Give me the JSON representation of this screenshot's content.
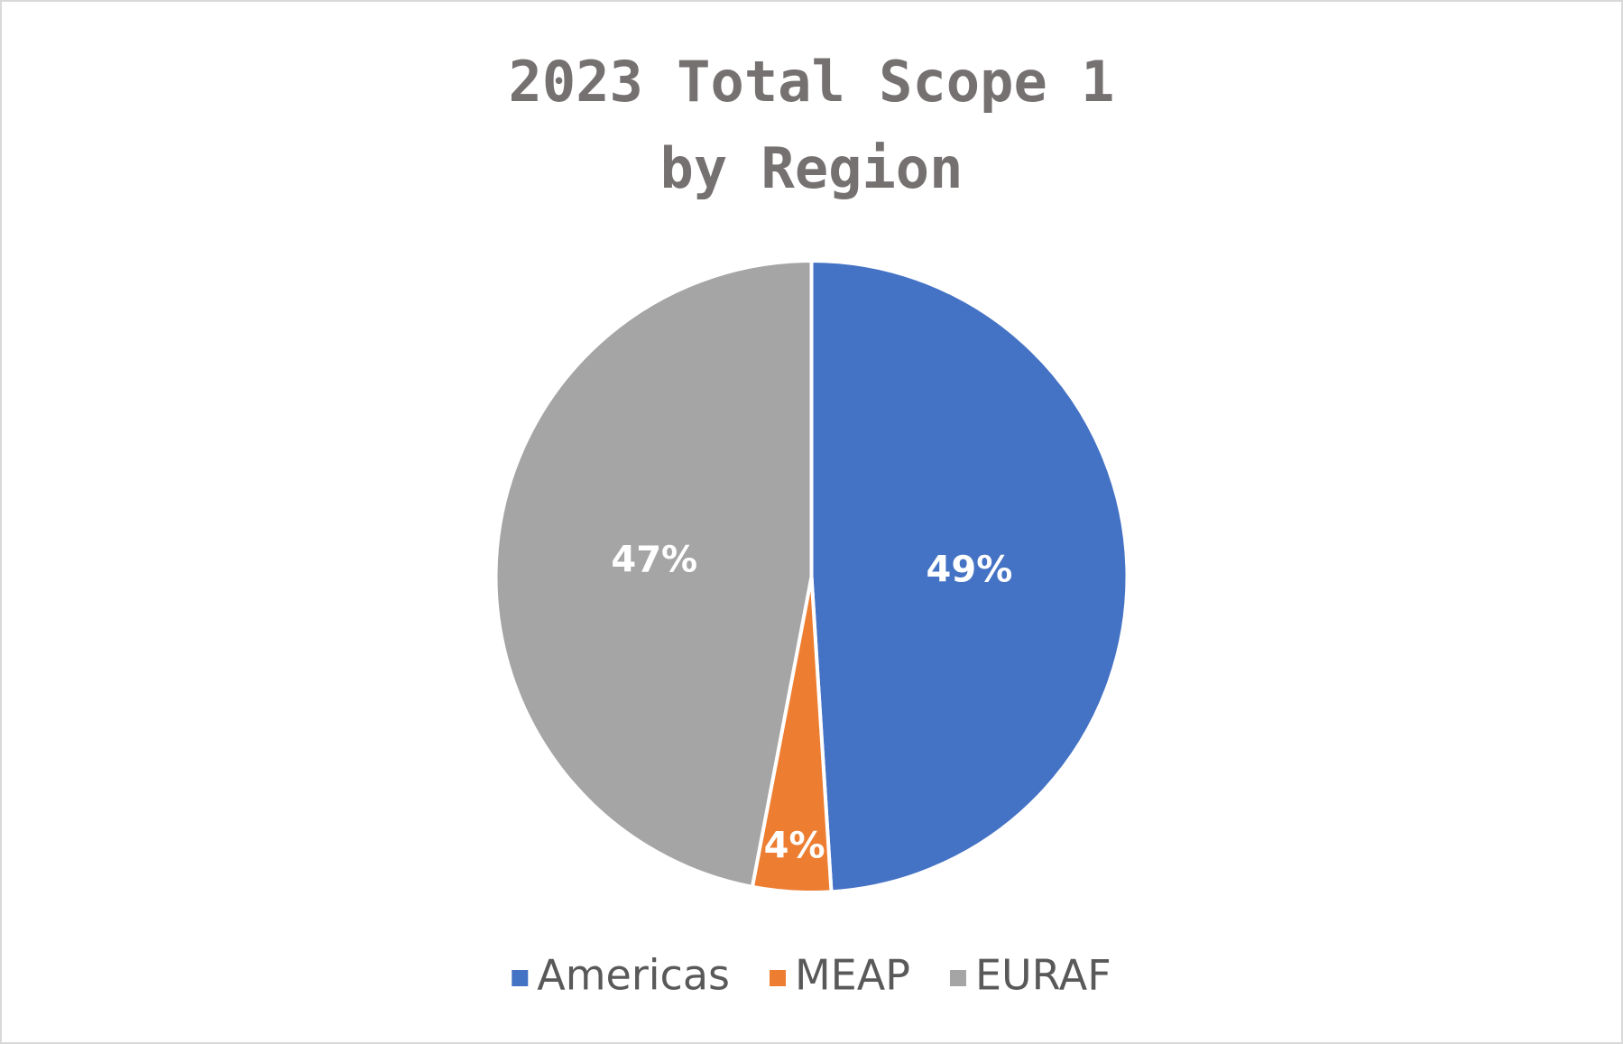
{
  "chart_data": {
    "type": "pie",
    "title": [
      "2023 Total Scope 1",
      "by Region"
    ],
    "categories": [
      "Americas",
      "MEAP",
      "EURAF"
    ],
    "values": [
      49,
      4,
      47
    ],
    "value_labels": [
      "49%",
      "4%",
      "47%"
    ],
    "colors": [
      "#4472c4",
      "#ed7d31",
      "#a5a5a5"
    ],
    "legend": "bottom"
  }
}
